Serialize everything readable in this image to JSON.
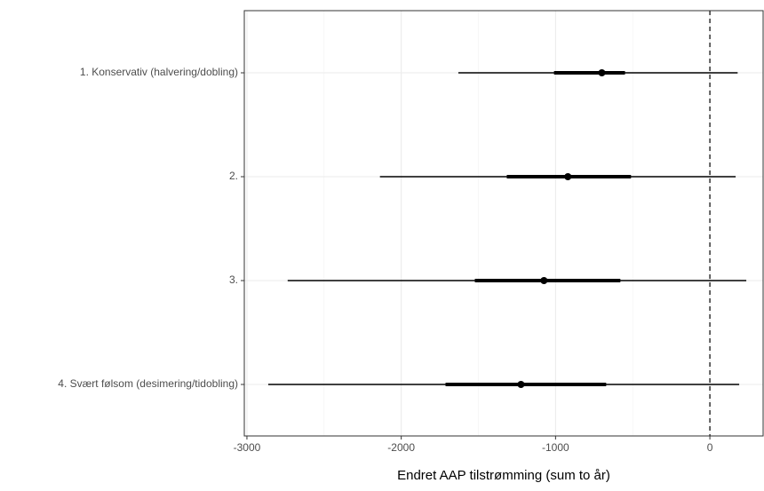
{
  "chart_data": {
    "type": "interval",
    "x_label": "Endret AAP tilstrømming (sum to år)",
    "categories": [
      "1. Konservativ (halvering/dobling)",
      "2.",
      "3.",
      "4. Svært følsom (desimering/tidobling)"
    ],
    "points": [
      -700,
      -920,
      -1075,
      -1224
    ],
    "inner": [
      [
        -1010,
        -550
      ],
      [
        -1316,
        -511
      ],
      [
        -1523,
        -580
      ],
      [
        -1713,
        -672
      ]
    ],
    "outer": [
      [
        -1630,
        180
      ],
      [
        -2138,
        167
      ],
      [
        -2736,
        236
      ],
      [
        -2862,
        190
      ]
    ],
    "xlim": [
      -3017,
      345
    ],
    "xticks": [
      -3000,
      -2000,
      -1000,
      0
    ],
    "xminorticks": [
      -2500,
      -1500,
      -500
    ],
    "reference_line": 0,
    "grid": true
  }
}
